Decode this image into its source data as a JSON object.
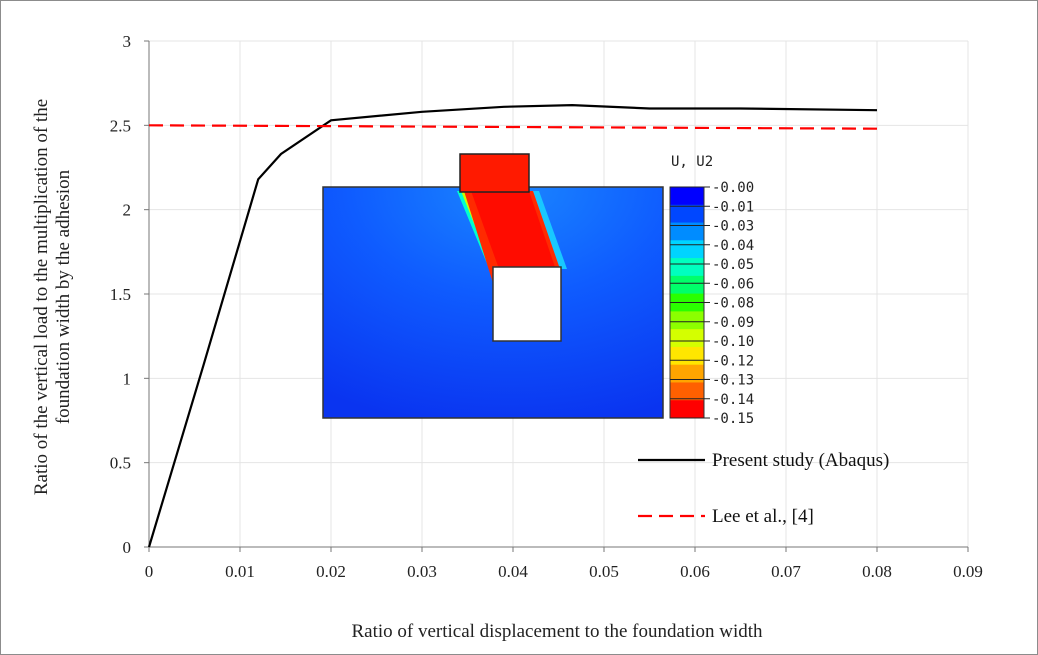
{
  "chart_data": {
    "type": "line",
    "xlabel": "Ratio of vertical displacement to the foundation width",
    "ylabel": "Ratio of the vertical load to the multiplication of the foundation width by the adhesion",
    "ylabel_lines": [
      "Ratio of the vertical load to the multiplication of the",
      "foundation width by the adhesion"
    ],
    "xlim": [
      0,
      0.09
    ],
    "ylim": [
      0,
      3
    ],
    "x_ticks": [
      "0",
      "0.01",
      "0.02",
      "0.03",
      "0.04",
      "0.05",
      "0.06",
      "0.07",
      "0.08",
      "0.09"
    ],
    "y_ticks": [
      "0",
      "0.5",
      "1",
      "1.5",
      "2",
      "2.5",
      "3"
    ],
    "grid": "horizontal and vertical",
    "legend_position": "bottom-right",
    "series": [
      {
        "name": "Present study (Abaqus)",
        "color": "#000000",
        "style": "solid",
        "x": [
          0,
          0.003,
          0.006,
          0.009,
          0.012,
          0.0145,
          0.02,
          0.03,
          0.039,
          0.0465,
          0.055,
          0.065,
          0.08
        ],
        "y": [
          0,
          0.54,
          1.08,
          1.63,
          2.18,
          2.33,
          2.53,
          2.58,
          2.61,
          2.62,
          2.6,
          2.6,
          2.59
        ]
      },
      {
        "name": "Lee et al., [4]",
        "color": "#ff0000",
        "style": "dashed",
        "x": [
          0,
          0.08
        ],
        "y": [
          2.5,
          2.48
        ]
      }
    ]
  },
  "inset": {
    "title": "U, U2",
    "colorbar_labels": [
      "-0.00",
      "-0.01",
      "-0.03",
      "-0.04",
      "-0.05",
      "-0.06",
      "-0.08",
      "-0.09",
      "-0.10",
      "-0.12",
      "-0.13",
      "-0.14",
      "-0.15"
    ],
    "colorbar_colors": [
      "#0000ff",
      "#0047ff",
      "#008cff",
      "#00d4ff",
      "#00ffbf",
      "#00ff6a",
      "#2aff00",
      "#8cff00",
      "#d4ff00",
      "#ffe600",
      "#ffa500",
      "#ff6000",
      "#ff0000"
    ]
  }
}
